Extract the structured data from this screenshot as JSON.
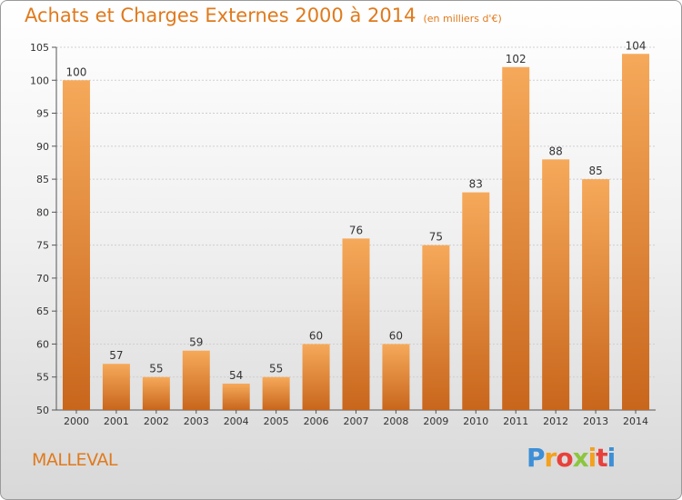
{
  "header": {
    "title": "Achats et Charges Externes 2000 à 2014",
    "unit": "(en milliers d'€)"
  },
  "footer": {
    "commune": "MALLEVAL",
    "brand_letters": [
      "P",
      "r",
      "o",
      "x",
      "i",
      "t",
      "i"
    ],
    "brand_colors": [
      "#3d8fd6",
      "#f4a11d",
      "#e8413b",
      "#8cc63f",
      "#f4a11d",
      "#e8413b",
      "#3d8fd6"
    ]
  },
  "colors": {
    "accent": "#e07a1c",
    "bar_top": "#f6a95a",
    "bar_bottom": "#c8661c"
  },
  "chart_data": {
    "type": "bar",
    "categories": [
      "2000",
      "2001",
      "2002",
      "2003",
      "2004",
      "2005",
      "2006",
      "2007",
      "2008",
      "2009",
      "2010",
      "2011",
      "2012",
      "2013",
      "2014"
    ],
    "values": [
      100,
      57,
      55,
      59,
      54,
      55,
      60,
      76,
      60,
      75,
      83,
      102,
      88,
      85,
      104
    ],
    "ylim": [
      50,
      105
    ],
    "yticks": [
      50,
      55,
      60,
      65,
      70,
      75,
      80,
      85,
      90,
      95,
      100,
      105
    ],
    "grid": true,
    "title": "Achats et Charges Externes 2000 à 2014",
    "xlabel": "",
    "ylabel": ""
  }
}
